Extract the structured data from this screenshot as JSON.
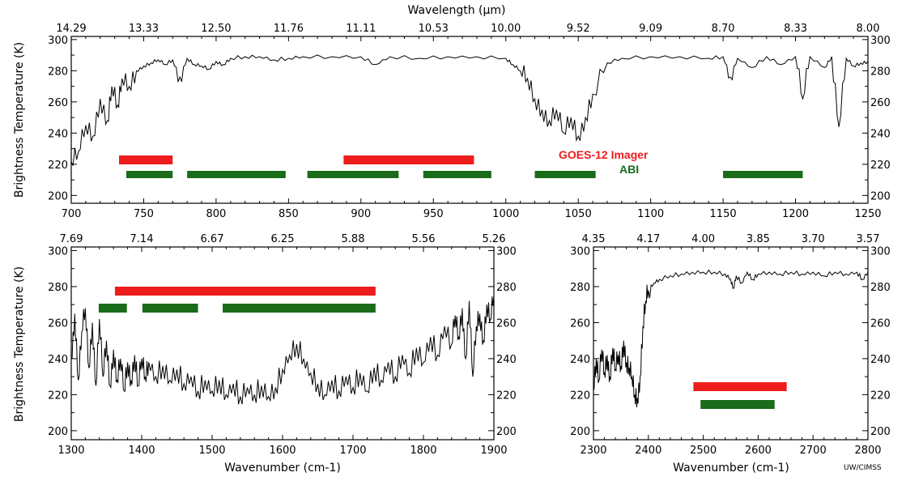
{
  "credit": "UW/CIMSS",
  "colors": {
    "goes": "#ee1c1c",
    "abi": "#1a6b1a",
    "line": "#000000"
  },
  "chart_data": [
    {
      "id": "top",
      "type": "line",
      "xlabel": "",
      "ylabel": "Brightness Temperature (K)",
      "toplabel": "Wavelength (µm)",
      "xlim": [
        700,
        1250
      ],
      "ylim": [
        195,
        302
      ],
      "x_ticks": [
        700,
        750,
        800,
        850,
        900,
        950,
        1000,
        1050,
        1100,
        1150,
        1200,
        1250
      ],
      "y_ticks": [
        200,
        220,
        240,
        260,
        280,
        300
      ],
      "top_ticks": [
        "14.29",
        "13.33",
        "12.50",
        "11.76",
        "11.11",
        "10.53",
        "10.00",
        "9.52",
        "9.09",
        "8.70",
        "8.33",
        "8.00"
      ],
      "legend": [
        "GOES-12 Imager",
        "ABI"
      ],
      "spectrum": [
        [
          700,
          222
        ],
        [
          705,
          228
        ],
        [
          710,
          245
        ],
        [
          715,
          238
        ],
        [
          720,
          262
        ],
        [
          725,
          248
        ],
        [
          728,
          270
        ],
        [
          732,
          258
        ],
        [
          735,
          275
        ],
        [
          740,
          270
        ],
        [
          745,
          280
        ],
        [
          750,
          283
        ],
        [
          755,
          285
        ],
        [
          760,
          287
        ],
        [
          765,
          284
        ],
        [
          770,
          287
        ],
        [
          775,
          276
        ],
        [
          780,
          288
        ],
        [
          785,
          284
        ],
        [
          790,
          283
        ],
        [
          795,
          281
        ],
        [
          800,
          286
        ],
        [
          805,
          284
        ],
        [
          810,
          288
        ],
        [
          820,
          289
        ],
        [
          830,
          289
        ],
        [
          840,
          287
        ],
        [
          850,
          288
        ],
        [
          860,
          289
        ],
        [
          880,
          289
        ],
        [
          900,
          289
        ],
        [
          910,
          284
        ],
        [
          920,
          289
        ],
        [
          940,
          288
        ],
        [
          960,
          289
        ],
        [
          980,
          289
        ],
        [
          1000,
          288
        ],
        [
          1005,
          284
        ],
        [
          1010,
          280
        ],
        [
          1015,
          275
        ],
        [
          1020,
          262
        ],
        [
          1025,
          255
        ],
        [
          1030,
          248
        ],
        [
          1035,
          255
        ],
        [
          1040,
          240
        ],
        [
          1045,
          250
        ],
        [
          1050,
          238
        ],
        [
          1055,
          250
        ],
        [
          1060,
          265
        ],
        [
          1070,
          285
        ],
        [
          1080,
          288
        ],
        [
          1100,
          289
        ],
        [
          1120,
          289
        ],
        [
          1140,
          288
        ],
        [
          1150,
          289
        ],
        [
          1155,
          276
        ],
        [
          1160,
          288
        ],
        [
          1170,
          282
        ],
        [
          1180,
          289
        ],
        [
          1190,
          284
        ],
        [
          1200,
          289
        ],
        [
          1205,
          262
        ],
        [
          1210,
          289
        ],
        [
          1220,
          282
        ],
        [
          1225,
          289
        ],
        [
          1230,
          244
        ],
        [
          1235,
          288
        ],
        [
          1240,
          283
        ],
        [
          1245,
          285
        ],
        [
          1250,
          286
        ]
      ],
      "goes_bands": [
        [
          733,
          770
        ],
        [
          888,
          978
        ]
      ],
      "abi_bands": [
        [
          738,
          770
        ],
        [
          780,
          848
        ],
        [
          863,
          926
        ],
        [
          943,
          990
        ],
        [
          1020,
          1062
        ],
        [
          1150,
          1205
        ]
      ]
    },
    {
      "id": "bottom-left",
      "type": "line",
      "xlabel": "Wavenumber (cm-1)",
      "ylabel": "Brightness Temperature (K)",
      "toplabel": "",
      "xlim": [
        1300,
        1900
      ],
      "ylim": [
        195,
        302
      ],
      "x_ticks": [
        1300,
        1400,
        1500,
        1600,
        1700,
        1800,
        1900
      ],
      "y_ticks": [
        200,
        220,
        240,
        260,
        280,
        300
      ],
      "top_ticks": [
        "7.69",
        "7.14",
        "6.67",
        "6.25",
        "5.88",
        "5.56",
        "5.26"
      ],
      "legend": [],
      "spectrum": [
        [
          1300,
          240
        ],
        [
          1305,
          265
        ],
        [
          1310,
          228
        ],
        [
          1315,
          255
        ],
        [
          1320,
          268
        ],
        [
          1325,
          235
        ],
        [
          1330,
          260
        ],
        [
          1335,
          225
        ],
        [
          1340,
          262
        ],
        [
          1345,
          230
        ],
        [
          1350,
          250
        ],
        [
          1355,
          225
        ],
        [
          1360,
          245
        ],
        [
          1365,
          228
        ],
        [
          1370,
          240
        ],
        [
          1375,
          222
        ],
        [
          1380,
          238
        ],
        [
          1385,
          228
        ],
        [
          1390,
          242
        ],
        [
          1395,
          225
        ],
        [
          1400,
          240
        ],
        [
          1405,
          230
        ],
        [
          1410,
          238
        ],
        [
          1420,
          230
        ],
        [
          1430,
          236
        ],
        [
          1440,
          228
        ],
        [
          1450,
          234
        ],
        [
          1460,
          226
        ],
        [
          1470,
          230
        ],
        [
          1480,
          222
        ],
        [
          1490,
          228
        ],
        [
          1500,
          222
        ],
        [
          1510,
          228
        ],
        [
          1520,
          220
        ],
        [
          1530,
          226
        ],
        [
          1540,
          219
        ],
        [
          1550,
          224
        ],
        [
          1560,
          220
        ],
        [
          1570,
          225
        ],
        [
          1580,
          219
        ],
        [
          1590,
          224
        ],
        [
          1600,
          234
        ],
        [
          1610,
          242
        ],
        [
          1620,
          248
        ],
        [
          1630,
          240
        ],
        [
          1640,
          232
        ],
        [
          1650,
          226
        ],
        [
          1660,
          220
        ],
        [
          1670,
          228
        ],
        [
          1680,
          222
        ],
        [
          1690,
          230
        ],
        [
          1700,
          224
        ],
        [
          1710,
          232
        ],
        [
          1720,
          222
        ],
        [
          1730,
          235
        ],
        [
          1740,
          228
        ],
        [
          1750,
          238
        ],
        [
          1760,
          230
        ],
        [
          1770,
          242
        ],
        [
          1780,
          232
        ],
        [
          1790,
          246
        ],
        [
          1800,
          238
        ],
        [
          1810,
          252
        ],
        [
          1820,
          242
        ],
        [
          1830,
          258
        ],
        [
          1840,
          248
        ],
        [
          1845,
          264
        ],
        [
          1850,
          252
        ],
        [
          1855,
          268
        ],
        [
          1860,
          240
        ],
        [
          1865,
          272
        ],
        [
          1870,
          230
        ],
        [
          1875,
          258
        ],
        [
          1880,
          265
        ],
        [
          1885,
          250
        ],
        [
          1890,
          270
        ],
        [
          1895,
          262
        ],
        [
          1900,
          275
        ]
      ],
      "goes_bands": [
        [
          1362,
          1732
        ]
      ],
      "abi_bands": [
        [
          1339,
          1379
        ],
        [
          1401,
          1480
        ],
        [
          1515,
          1732
        ]
      ]
    },
    {
      "id": "bottom-right",
      "type": "line",
      "xlabel": "Wavenumber (cm-1)",
      "ylabel": "",
      "toplabel": "",
      "xlim": [
        2300,
        2800
      ],
      "ylim": [
        195,
        302
      ],
      "x_ticks": [
        2300,
        2400,
        2500,
        2600,
        2700,
        2800
      ],
      "y_ticks": [
        200,
        220,
        240,
        260,
        280,
        300
      ],
      "top_ticks": [
        "4.35",
        "4.17",
        "4.00",
        "3.85",
        "3.70",
        "3.57"
      ],
      "legend": [],
      "spectrum": [
        [
          2300,
          225
        ],
        [
          2305,
          240
        ],
        [
          2310,
          228
        ],
        [
          2315,
          245
        ],
        [
          2320,
          232
        ],
        [
          2325,
          242
        ],
        [
          2330,
          230
        ],
        [
          2335,
          246
        ],
        [
          2340,
          234
        ],
        [
          2345,
          242
        ],
        [
          2350,
          236
        ],
        [
          2355,
          250
        ],
        [
          2360,
          238
        ],
        [
          2365,
          235
        ],
        [
          2370,
          230
        ],
        [
          2375,
          220
        ],
        [
          2380,
          218
        ],
        [
          2385,
          230
        ],
        [
          2390,
          258
        ],
        [
          2395,
          272
        ],
        [
          2400,
          278
        ],
        [
          2410,
          282
        ],
        [
          2420,
          284
        ],
        [
          2440,
          286
        ],
        [
          2460,
          287
        ],
        [
          2480,
          288
        ],
        [
          2500,
          288
        ],
        [
          2520,
          288
        ],
        [
          2540,
          287
        ],
        [
          2550,
          284
        ],
        [
          2555,
          279
        ],
        [
          2560,
          286
        ],
        [
          2570,
          282
        ],
        [
          2580,
          288
        ],
        [
          2590,
          284
        ],
        [
          2600,
          287
        ],
        [
          2620,
          288
        ],
        [
          2640,
          287
        ],
        [
          2660,
          288
        ],
        [
          2680,
          287
        ],
        [
          2700,
          288
        ],
        [
          2720,
          286
        ],
        [
          2740,
          288
        ],
        [
          2760,
          287
        ],
        [
          2780,
          288
        ],
        [
          2790,
          284
        ],
        [
          2800,
          288
        ]
      ],
      "goes_bands": [
        [
          2482,
          2652
        ]
      ],
      "abi_bands": [
        [
          2495,
          2630
        ]
      ]
    }
  ]
}
